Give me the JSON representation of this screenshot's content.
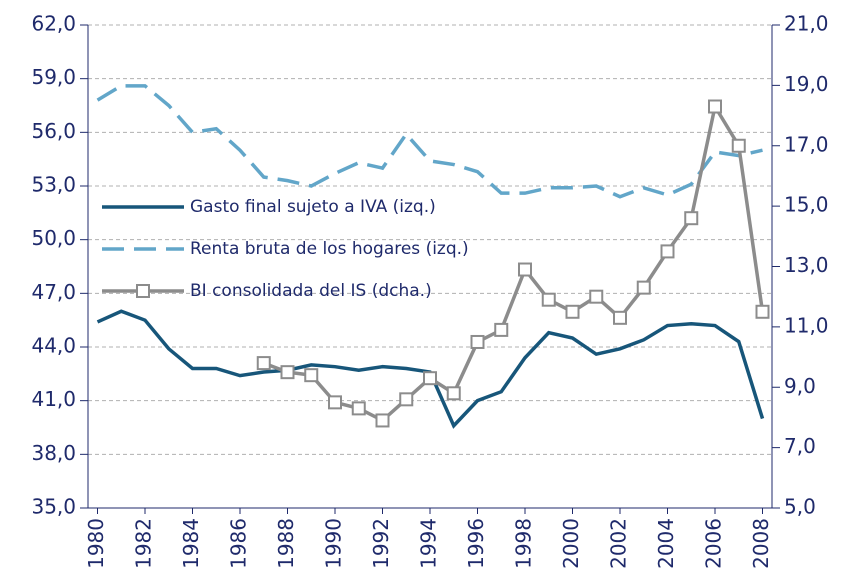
{
  "chart_data": {
    "type": "line",
    "x": [
      1980,
      1981,
      1982,
      1983,
      1984,
      1985,
      1986,
      1987,
      1988,
      1989,
      1990,
      1991,
      1992,
      1993,
      1994,
      1995,
      1996,
      1997,
      1998,
      1999,
      2000,
      2001,
      2002,
      2003,
      2004,
      2005,
      2006,
      2007,
      2008
    ],
    "xlim": [
      1979.6,
      2008.4
    ],
    "xticks": [
      1980,
      1982,
      1984,
      1986,
      1988,
      1990,
      1992,
      1994,
      1996,
      1998,
      2000,
      2002,
      2004,
      2006,
      2008
    ],
    "ylim": [
      35,
      62
    ],
    "yticks": [
      {
        "value": 35,
        "label": "35,0"
      },
      {
        "value": 38,
        "label": "38,0"
      },
      {
        "value": 41,
        "label": "41,0"
      },
      {
        "value": 44,
        "label": "44,0"
      },
      {
        "value": 47,
        "label": "47,0"
      },
      {
        "value": 50,
        "label": "50,0"
      },
      {
        "value": 53,
        "label": "53,0"
      },
      {
        "value": 56,
        "label": "56,0"
      },
      {
        "value": 59,
        "label": "59,0"
      },
      {
        "value": 62,
        "label": "62,0"
      }
    ],
    "y2lim": [
      5,
      21
    ],
    "y2ticks": [
      {
        "value": 5,
        "label": "5,0"
      },
      {
        "value": 7,
        "label": "7,0"
      },
      {
        "value": 9,
        "label": "9,0"
      },
      {
        "value": 11,
        "label": "11,0"
      },
      {
        "value": 13,
        "label": "13,0"
      },
      {
        "value": 15,
        "label": "15,0"
      },
      {
        "value": 17,
        "label": "17,0"
      },
      {
        "value": 19,
        "label": "19,0"
      },
      {
        "value": 21,
        "label": "21,0"
      }
    ],
    "grid": true,
    "legend": "left",
    "series": [
      {
        "name": "Gasto final sujeto a IVA (izq.)",
        "color": "#17567a",
        "style": "solid",
        "axis": "y",
        "values": [
          45.4,
          46.0,
          45.5,
          43.9,
          42.8,
          42.8,
          42.4,
          42.6,
          42.7,
          43.0,
          42.9,
          42.7,
          42.9,
          42.8,
          42.6,
          39.6,
          41.0,
          41.5,
          43.4,
          44.8,
          44.5,
          43.6,
          43.9,
          44.4,
          45.2,
          45.3,
          45.2,
          44.3,
          40.0
        ]
      },
      {
        "name": "Renta bruta de los hogares (izq.)",
        "color": "#62a6c9",
        "style": "dashed",
        "axis": "y",
        "values": [
          57.8,
          58.6,
          58.6,
          57.5,
          56.0,
          56.2,
          55.0,
          53.5,
          53.3,
          53.0,
          53.7,
          54.3,
          54.0,
          55.9,
          54.4,
          54.2,
          53.8,
          52.6,
          52.6,
          52.9,
          52.9,
          53.0,
          52.4,
          52.9,
          52.5,
          53.1,
          54.9,
          54.7,
          55.0
        ]
      },
      {
        "name": "BI consolidada del IS (dcha.)",
        "color": "#8c8c8c",
        "style": "solid",
        "marker": "square",
        "axis": "y2",
        "values": [
          null,
          null,
          null,
          null,
          null,
          null,
          null,
          9.8,
          9.5,
          9.4,
          8.5,
          8.3,
          7.9,
          8.6,
          9.3,
          8.8,
          10.5,
          10.9,
          12.9,
          11.9,
          11.5,
          12.0,
          11.3,
          12.3,
          13.5,
          14.6,
          18.3,
          17.0,
          11.5
        ]
      }
    ]
  }
}
